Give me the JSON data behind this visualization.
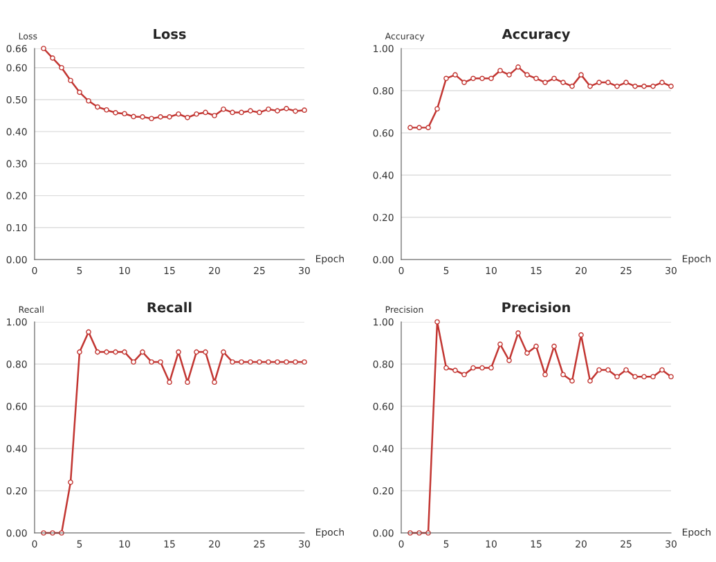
{
  "chart_data": [
    {
      "type": "line",
      "title": "Loss",
      "ylabel": "Loss",
      "xlabel": "Epoch",
      "x": [
        1,
        2,
        3,
        4,
        5,
        6,
        7,
        8,
        9,
        10,
        11,
        12,
        13,
        14,
        15,
        16,
        17,
        18,
        19,
        20,
        21,
        22,
        23,
        24,
        25,
        26,
        27,
        28,
        29,
        30
      ],
      "series": [
        {
          "color": "#c23531",
          "values": [
            0.66,
            0.63,
            0.6,
            0.56,
            0.523,
            0.496,
            0.477,
            0.468,
            0.459,
            0.456,
            0.447,
            0.446,
            0.441,
            0.446,
            0.446,
            0.455,
            0.444,
            0.455,
            0.46,
            0.45,
            0.47,
            0.46,
            0.46,
            0.465,
            0.46,
            0.47,
            0.465,
            0.472,
            0.464,
            0.467
          ]
        }
      ],
      "xlim": [
        0,
        30
      ],
      "ylim": [
        0,
        0.66
      ],
      "xticks": [
        0,
        5,
        10,
        15,
        20,
        25,
        30
      ],
      "yticks": [
        {
          "value": 0,
          "label": "0.00"
        },
        {
          "value": 0.1,
          "label": "0.10"
        },
        {
          "value": 0.2,
          "label": "0.20"
        },
        {
          "value": 0.3,
          "label": "0.30"
        },
        {
          "value": 0.4,
          "label": "0.40"
        },
        {
          "value": 0.5,
          "label": "0.50"
        },
        {
          "value": 0.6,
          "label": "0.60"
        },
        {
          "value": 0.66,
          "label": "0.66"
        }
      ],
      "grid": "y",
      "marker": "circle",
      "line_style": "solid"
    },
    {
      "type": "line",
      "title": "Accuracy",
      "ylabel": "Accuracy",
      "xlabel": "Epoch",
      "x": [
        1,
        2,
        3,
        4,
        5,
        6,
        7,
        8,
        9,
        10,
        11,
        12,
        13,
        14,
        15,
        16,
        17,
        18,
        19,
        20,
        21,
        22,
        23,
        24,
        25,
        26,
        27,
        28,
        29,
        30
      ],
      "series": [
        {
          "color": "#c23531",
          "values": [
            0.625,
            0.625,
            0.625,
            0.714,
            0.858,
            0.875,
            0.839,
            0.858,
            0.858,
            0.858,
            0.895,
            0.875,
            0.912,
            0.875,
            0.858,
            0.839,
            0.858,
            0.839,
            0.821,
            0.875,
            0.821,
            0.839,
            0.839,
            0.821,
            0.839,
            0.821,
            0.821,
            0.821,
            0.839,
            0.821
          ]
        }
      ],
      "xlim": [
        0,
        30
      ],
      "ylim": [
        0,
        1
      ],
      "xticks": [
        0,
        5,
        10,
        15,
        20,
        25,
        30
      ],
      "yticks": [
        {
          "value": 0,
          "label": "0.00"
        },
        {
          "value": 0.2,
          "label": "0.20"
        },
        {
          "value": 0.4,
          "label": "0.40"
        },
        {
          "value": 0.6,
          "label": "0.60"
        },
        {
          "value": 0.8,
          "label": "0.80"
        },
        {
          "value": 1,
          "label": "1.00"
        }
      ],
      "grid": "y",
      "marker": "circle",
      "line_style": "solid"
    },
    {
      "type": "line",
      "title": "Recall",
      "ylabel": "Recall",
      "xlabel": "Epoch",
      "x": [
        1,
        2,
        3,
        4,
        5,
        6,
        7,
        8,
        9,
        10,
        11,
        12,
        13,
        14,
        15,
        16,
        17,
        18,
        19,
        20,
        21,
        22,
        23,
        24,
        25,
        26,
        27,
        28,
        29,
        30
      ],
      "series": [
        {
          "color": "#c23531",
          "values": [
            0,
            0,
            0,
            0.24,
            0.857,
            0.952,
            0.857,
            0.857,
            0.857,
            0.857,
            0.81,
            0.857,
            0.81,
            0.81,
            0.714,
            0.857,
            0.714,
            0.857,
            0.857,
            0.714,
            0.857,
            0.81,
            0.81,
            0.81,
            0.81,
            0.81,
            0.81,
            0.81,
            0.81,
            0.81
          ]
        }
      ],
      "xlim": [
        0,
        30
      ],
      "ylim": [
        0,
        1
      ],
      "xticks": [
        0,
        5,
        10,
        15,
        20,
        25,
        30
      ],
      "yticks": [
        {
          "value": 0,
          "label": "0.00"
        },
        {
          "value": 0.2,
          "label": "0.20"
        },
        {
          "value": 0.4,
          "label": "0.40"
        },
        {
          "value": 0.6,
          "label": "0.60"
        },
        {
          "value": 0.8,
          "label": "0.80"
        },
        {
          "value": 1,
          "label": "1.00"
        }
      ],
      "grid": "y",
      "marker": "circle",
      "line_style": "solid"
    },
    {
      "type": "line",
      "title": "Precision",
      "ylabel": "Precision",
      "xlabel": "Epoch",
      "x": [
        1,
        2,
        3,
        4,
        5,
        6,
        7,
        8,
        9,
        10,
        11,
        12,
        13,
        14,
        15,
        16,
        17,
        18,
        19,
        20,
        21,
        22,
        23,
        24,
        25,
        26,
        27,
        28,
        29,
        30
      ],
      "series": [
        {
          "color": "#c23531",
          "values": [
            0,
            0,
            0,
            1,
            0.782,
            0.77,
            0.75,
            0.782,
            0.782,
            0.782,
            0.894,
            0.817,
            0.947,
            0.852,
            0.884,
            0.75,
            0.884,
            0.75,
            0.72,
            0.938,
            0.72,
            0.772,
            0.772,
            0.74,
            0.772,
            0.74,
            0.74,
            0.74,
            0.772,
            0.74
          ]
        }
      ],
      "xlim": [
        0,
        30
      ],
      "ylim": [
        0,
        1
      ],
      "xticks": [
        0,
        5,
        10,
        15,
        20,
        25,
        30
      ],
      "yticks": [
        {
          "value": 0,
          "label": "0.00"
        },
        {
          "value": 0.2,
          "label": "0.20"
        },
        {
          "value": 0.4,
          "label": "0.40"
        },
        {
          "value": 0.6,
          "label": "0.60"
        },
        {
          "value": 0.8,
          "label": "0.80"
        },
        {
          "value": 1,
          "label": "1.00"
        }
      ],
      "grid": "y",
      "marker": "circle",
      "line_style": "solid"
    }
  ]
}
